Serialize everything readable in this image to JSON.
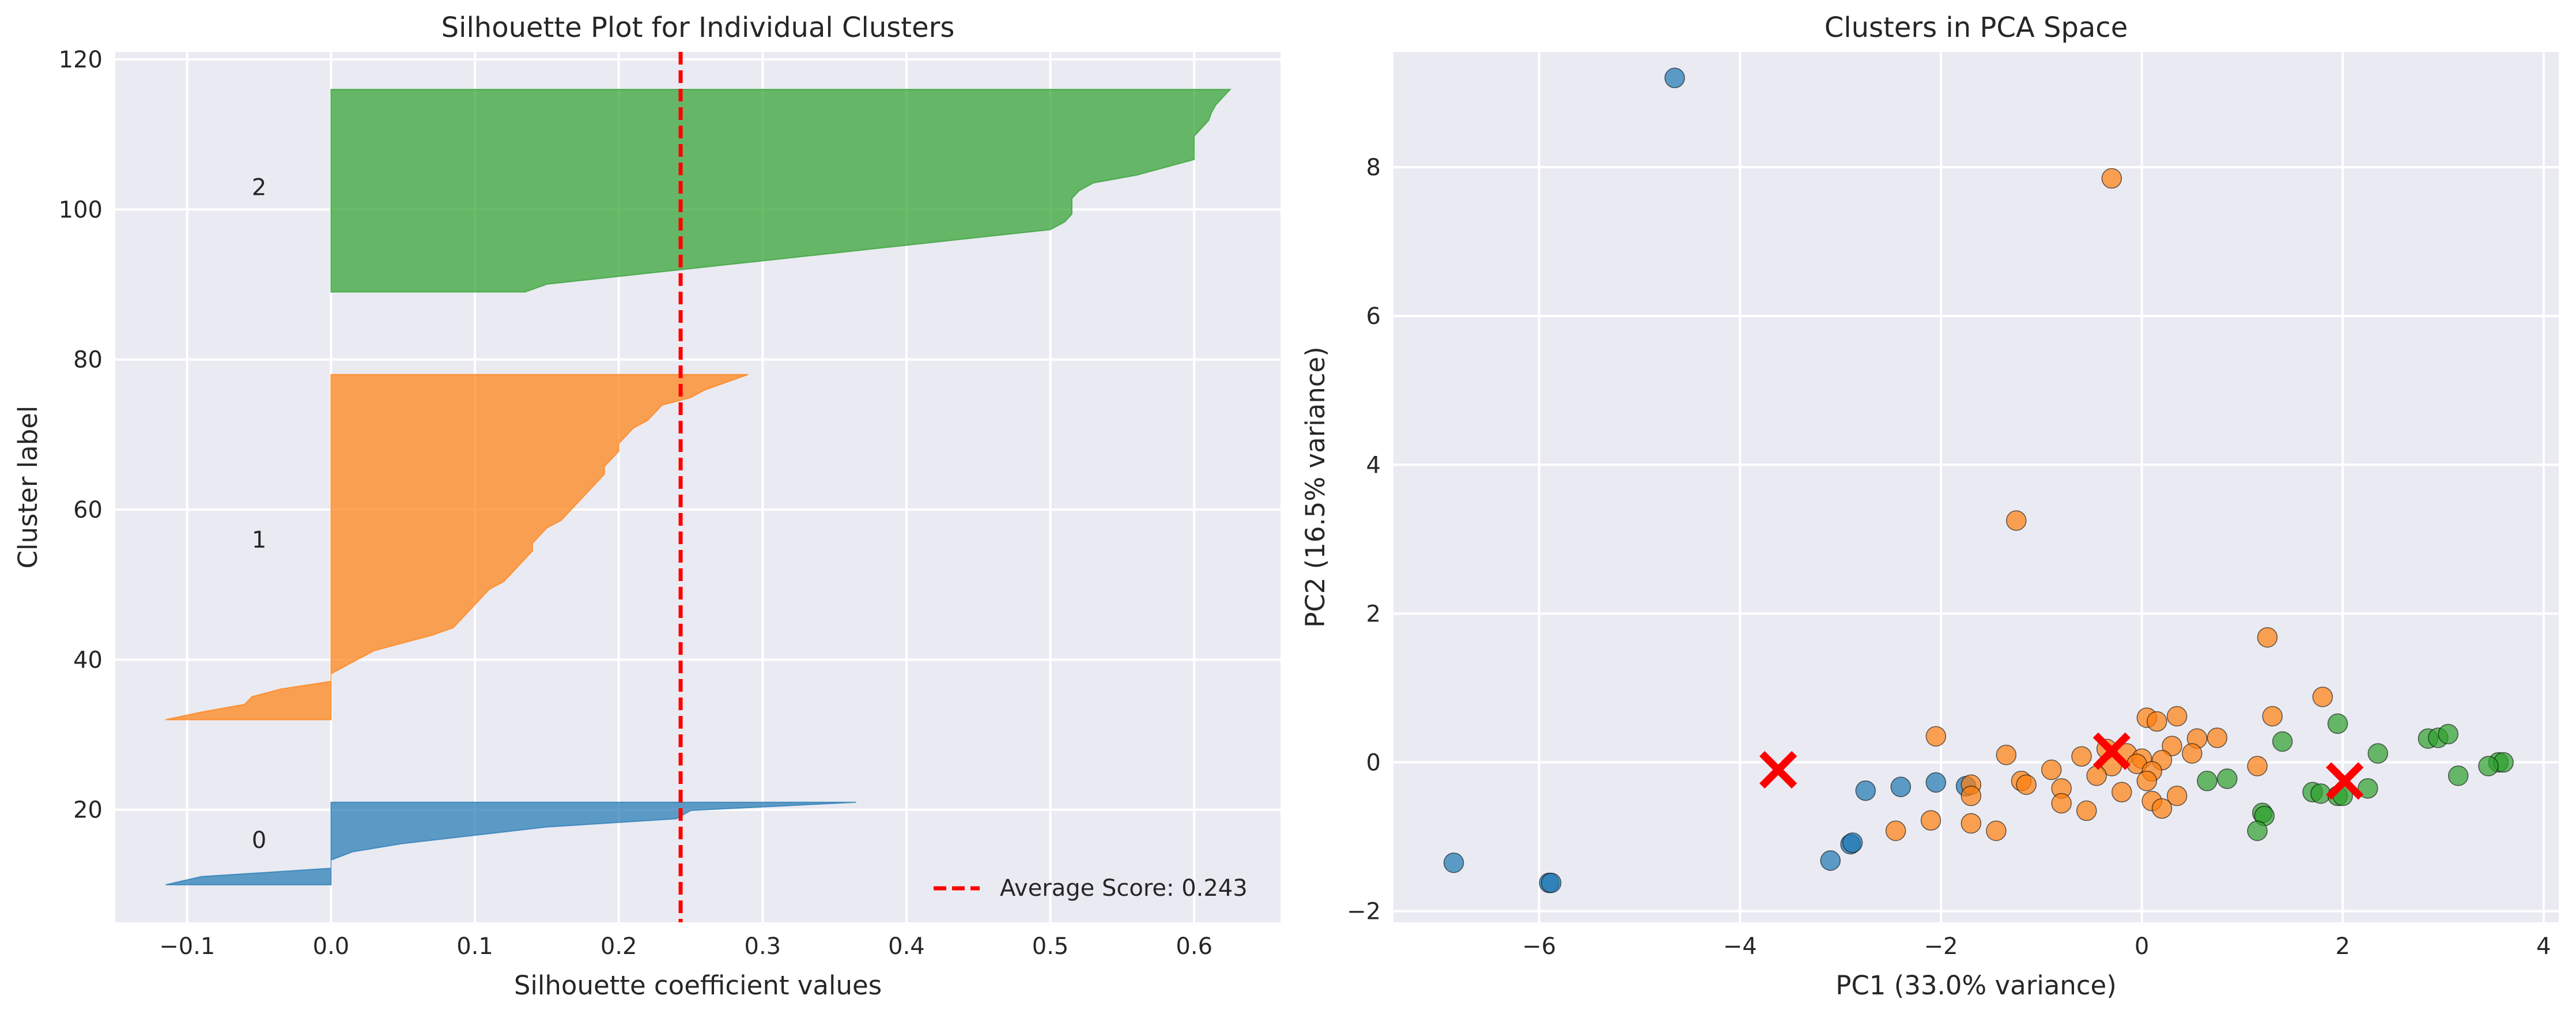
{
  "chart_data": [
    {
      "type": "area",
      "title": "Silhouette Plot for Individual Clusters",
      "xlabel": "Silhouette coefficient values",
      "ylabel": "Cluster label",
      "xlim": [
        -0.15,
        0.66
      ],
      "ylim": [
        5,
        121
      ],
      "xticks": [
        -0.1,
        0.0,
        0.1,
        0.2,
        0.3,
        0.4,
        0.5,
        0.6
      ],
      "yticks": [
        20,
        40,
        60,
        80,
        100,
        120
      ],
      "grid": true,
      "average_score": 0.243,
      "legend": {
        "position": "lower-right",
        "entries": [
          "Average Score: 0.243"
        ]
      },
      "clusters": [
        {
          "label": "0",
          "color": "#1f77b4",
          "label_y": 16,
          "y_start": 10,
          "y_end": 21,
          "values": [
            -0.115,
            -0.09,
            0.0,
            0.0,
            0.015,
            0.05,
            0.1,
            0.15,
            0.24,
            0.25,
            0.365
          ]
        },
        {
          "label": "1",
          "color": "#ff7f0e",
          "label_y": 56,
          "y_start": 32,
          "y_end": 78,
          "values": [
            -0.115,
            -0.09,
            -0.06,
            -0.055,
            -0.035,
            0.0,
            0.0,
            0.01,
            0.02,
            0.03,
            0.05,
            0.07,
            0.085,
            0.09,
            0.095,
            0.1,
            0.105,
            0.11,
            0.12,
            0.125,
            0.13,
            0.135,
            0.14,
            0.14,
            0.145,
            0.15,
            0.16,
            0.165,
            0.17,
            0.175,
            0.18,
            0.185,
            0.19,
            0.19,
            0.195,
            0.2,
            0.2,
            0.205,
            0.21,
            0.22,
            0.225,
            0.23,
            0.25,
            0.26,
            0.275,
            0.29
          ]
        },
        {
          "label": "2",
          "color": "#2ca02c",
          "label_y": 103,
          "y_start": 89,
          "y_end": 116,
          "values": [
            0.135,
            0.15,
            0.2,
            0.25,
            0.3,
            0.35,
            0.4,
            0.45,
            0.5,
            0.51,
            0.515,
            0.515,
            0.515,
            0.52,
            0.53,
            0.56,
            0.58,
            0.6,
            0.6,
            0.6,
            0.6,
            0.605,
            0.61,
            0.612,
            0.615,
            0.62,
            0.625
          ]
        }
      ]
    },
    {
      "type": "scatter",
      "title": "Clusters in PCA Space",
      "xlabel": "PC1 (33.0% variance)",
      "ylabel": "PC2 (16.5% variance)",
      "xlim": [
        -7.45,
        4.15
      ],
      "ylim": [
        -2.15,
        9.55
      ],
      "xticks": [
        -6,
        -4,
        -2,
        0,
        2,
        4
      ],
      "yticks": [
        -2,
        0,
        2,
        4,
        6,
        8
      ],
      "grid": true,
      "series": [
        {
          "color": "#1f77b4",
          "points": [
            [
              -4.65,
              9.2
            ],
            [
              -6.85,
              -1.35
            ],
            [
              -5.9,
              -1.62
            ],
            [
              -5.88,
              -1.62
            ],
            [
              -3.1,
              -1.32
            ],
            [
              -2.9,
              -1.1
            ],
            [
              -2.88,
              -1.08
            ],
            [
              -2.75,
              -0.38
            ],
            [
              -2.4,
              -0.33
            ],
            [
              -2.05,
              -0.27
            ],
            [
              -1.75,
              -0.32
            ]
          ]
        },
        {
          "color": "#ff7f0e",
          "points": [
            [
              -0.3,
              7.85
            ],
            [
              -1.25,
              3.25
            ],
            [
              1.25,
              1.68
            ],
            [
              1.8,
              0.88
            ],
            [
              1.3,
              0.62
            ],
            [
              0.35,
              0.62
            ],
            [
              0.05,
              0.6
            ],
            [
              0.15,
              0.55
            ],
            [
              -2.05,
              0.35
            ],
            [
              0.75,
              0.33
            ],
            [
              0.55,
              0.32
            ],
            [
              0.3,
              0.22
            ],
            [
              -0.35,
              0.18
            ],
            [
              -0.15,
              0.12
            ],
            [
              0.5,
              0.12
            ],
            [
              -0.6,
              0.08
            ],
            [
              -1.35,
              0.1
            ],
            [
              0.0,
              0.05
            ],
            [
              0.2,
              0.03
            ],
            [
              -0.05,
              -0.02
            ],
            [
              -0.3,
              -0.05
            ],
            [
              1.15,
              -0.05
            ],
            [
              -0.9,
              -0.1
            ],
            [
              0.1,
              -0.12
            ],
            [
              -0.45,
              -0.18
            ],
            [
              -1.2,
              -0.25
            ],
            [
              -1.7,
              -0.3
            ],
            [
              -1.15,
              -0.3
            ],
            [
              0.05,
              -0.25
            ],
            [
              -0.8,
              -0.35
            ],
            [
              -0.2,
              -0.4
            ],
            [
              0.35,
              -0.45
            ],
            [
              -1.7,
              -0.45
            ],
            [
              0.1,
              -0.52
            ],
            [
              -0.8,
              -0.55
            ],
            [
              0.2,
              -0.62
            ],
            [
              -0.55,
              -0.65
            ],
            [
              -2.1,
              -0.78
            ],
            [
              -1.7,
              -0.82
            ],
            [
              -1.45,
              -0.92
            ],
            [
              -2.45,
              -0.92
            ]
          ]
        },
        {
          "color": "#2ca02c",
          "points": [
            [
              1.95,
              0.52
            ],
            [
              2.85,
              0.32
            ],
            [
              2.95,
              0.33
            ],
            [
              3.05,
              0.38
            ],
            [
              2.35,
              0.12
            ],
            [
              1.4,
              0.28
            ],
            [
              3.55,
              0.0
            ],
            [
              3.6,
              0.0
            ],
            [
              3.45,
              -0.05
            ],
            [
              3.15,
              -0.18
            ],
            [
              0.65,
              -0.25
            ],
            [
              0.85,
              -0.22
            ],
            [
              1.7,
              -0.4
            ],
            [
              1.78,
              -0.42
            ],
            [
              1.95,
              -0.45
            ],
            [
              2.0,
              -0.45
            ],
            [
              2.25,
              -0.35
            ],
            [
              1.2,
              -0.68
            ],
            [
              1.22,
              -0.72
            ],
            [
              1.15,
              -0.92
            ]
          ]
        }
      ],
      "centroids": {
        "color": "#ff0000",
        "points": [
          [
            -3.62,
            -0.1
          ],
          [
            -0.3,
            0.15
          ],
          [
            2.02,
            -0.25
          ]
        ]
      }
    }
  ]
}
